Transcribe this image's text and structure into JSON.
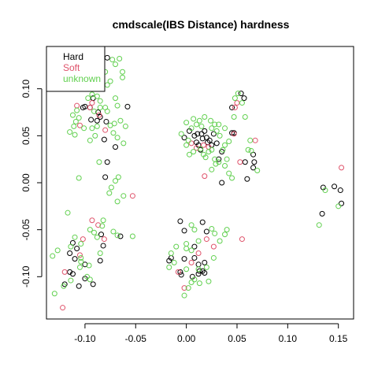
{
  "chart_data": {
    "type": "scatter",
    "title": "cmdscale(IBS Distance) hardness",
    "xlabel": "",
    "ylabel": "",
    "xlim": [
      -0.138,
      0.165
    ],
    "ylim": [
      -0.145,
      0.145
    ],
    "x_ticks": [
      -0.1,
      -0.05,
      0.0,
      0.05,
      0.1,
      0.15
    ],
    "x_tick_labels": [
      "-0.10",
      "-0.05",
      "0.00",
      "0.05",
      "0.10",
      "0.15"
    ],
    "y_ticks": [
      -0.1,
      -0.05,
      0.0,
      0.05,
      0.1
    ],
    "y_tick_labels": [
      "-0.10",
      "-0.05",
      "0.00",
      "0.05",
      "0.10"
    ],
    "grid": false,
    "legend_position": "top-left",
    "marker": "open-circle",
    "series": [
      {
        "name": "Hard",
        "color": "#000000",
        "points": [
          [
            -0.078,
            0.133
          ],
          [
            -0.092,
            0.09
          ],
          [
            -0.102,
            0.08
          ],
          [
            -0.1,
            0.081
          ],
          [
            -0.095,
            0.08
          ],
          [
            -0.087,
            0.075
          ],
          [
            -0.085,
            0.07
          ],
          [
            -0.094,
            0.067
          ],
          [
            -0.088,
            0.066
          ],
          [
            -0.079,
            0.065
          ],
          [
            -0.058,
            0.081
          ],
          [
            -0.07,
            0.038
          ],
          [
            -0.081,
            0.046
          ],
          [
            -0.078,
            0.022
          ],
          [
            -0.08,
            0.006
          ],
          [
            -0.112,
            -0.064
          ],
          [
            -0.108,
            -0.07
          ],
          [
            -0.115,
            -0.075
          ],
          [
            -0.11,
            -0.081
          ],
          [
            -0.1,
            -0.087
          ],
          [
            -0.115,
            -0.095
          ],
          [
            -0.112,
            -0.097
          ],
          [
            -0.1,
            -0.102
          ],
          [
            -0.092,
            -0.108
          ],
          [
            -0.12,
            -0.108
          ],
          [
            -0.106,
            -0.11
          ],
          [
            -0.085,
            -0.083
          ],
          [
            -0.082,
            -0.067
          ],
          [
            -0.084,
            -0.055
          ],
          [
            -0.065,
            -0.057
          ],
          [
            -0.002,
            0.048
          ],
          [
            0.003,
            0.055
          ],
          [
            0.008,
            0.05
          ],
          [
            0.01,
            0.043
          ],
          [
            0.012,
            0.04
          ],
          [
            0.015,
            0.052
          ],
          [
            0.018,
            0.055
          ],
          [
            0.02,
            0.048
          ],
          [
            0.023,
            0.045
          ],
          [
            0.021,
            0.043
          ],
          [
            0.025,
            0.04
          ],
          [
            0.016,
            0.047
          ],
          [
            0.011,
            0.052
          ],
          [
            0.027,
            0.052
          ],
          [
            0.03,
            0.042
          ],
          [
            0.035,
            0.033
          ],
          [
            0.032,
            0.025
          ],
          [
            0.045,
            0.053
          ],
          [
            0.047,
            0.053
          ],
          [
            0.054,
            0.095
          ],
          [
            0.057,
            0.09
          ],
          [
            0.045,
            0.08
          ],
          [
            0.058,
            0.022
          ],
          [
            0.066,
            0.03
          ],
          [
            0.067,
            0.022
          ],
          [
            0.066,
            0.016
          ],
          [
            0.06,
            0.004
          ],
          [
            0.035,
            0.0
          ],
          [
            0.014,
            0.035
          ],
          [
            -0.006,
            -0.041
          ],
          [
            -0.002,
            -0.051
          ],
          [
            0.016,
            -0.042
          ],
          [
            0.02,
            -0.052
          ],
          [
            -0.015,
            -0.08
          ],
          [
            -0.002,
            -0.081
          ],
          [
            0.008,
            -0.08
          ],
          [
            0.012,
            -0.087
          ],
          [
            0.018,
            -0.085
          ],
          [
            0.013,
            -0.094
          ],
          [
            0.016,
            -0.094
          ],
          [
            0.018,
            -0.096
          ],
          [
            0.012,
            -0.097
          ],
          [
            -0.006,
            -0.095
          ],
          [
            -0.005,
            -0.098
          ],
          [
            0.006,
            -0.1
          ],
          [
            -0.017,
            -0.083
          ],
          [
            0.008,
            -0.068
          ],
          [
            0.135,
            -0.005
          ],
          [
            0.146,
            -0.004
          ],
          [
            0.152,
            -0.008
          ],
          [
            0.153,
            -0.022
          ],
          [
            0.134,
            -0.033
          ]
        ]
      },
      {
        "name": "Soft",
        "color": "#DF536B",
        "points": [
          [
            -0.095,
            0.08
          ],
          [
            -0.105,
            0.061
          ],
          [
            -0.108,
            0.082
          ],
          [
            -0.08,
            0.056
          ],
          [
            -0.086,
            0.072
          ],
          [
            -0.093,
            0.085
          ],
          [
            -0.053,
            -0.014
          ],
          [
            -0.093,
            -0.04
          ],
          [
            -0.087,
            -0.045
          ],
          [
            -0.102,
            -0.06
          ],
          [
            -0.12,
            -0.095
          ],
          [
            -0.122,
            -0.133
          ],
          [
            -0.105,
            -0.077
          ],
          [
            -0.081,
            -0.06
          ],
          [
            0.017,
            0.04
          ],
          [
            0.022,
            0.038
          ],
          [
            0.01,
            0.037
          ],
          [
            0.05,
            0.085
          ],
          [
            0.048,
            0.08
          ],
          [
            0.068,
            0.045
          ],
          [
            0.047,
            0.052
          ],
          [
            0.053,
            0.022
          ],
          [
            0.018,
            0.007
          ],
          [
            0.005,
            0.042
          ],
          [
            0.02,
            -0.06
          ],
          [
            0.012,
            -0.075
          ],
          [
            0.005,
            -0.085
          ],
          [
            -0.002,
            -0.112
          ],
          [
            -0.008,
            -0.095
          ],
          [
            0.027,
            -0.068
          ],
          [
            0.055,
            -0.06
          ],
          [
            0.153,
            0.016
          ]
        ]
      },
      {
        "name": "unknown",
        "color": "#61D04F",
        "points": [
          [
            -0.073,
            0.131
          ],
          [
            -0.066,
            0.132
          ],
          [
            -0.07,
            0.126
          ],
          [
            -0.08,
            0.118
          ],
          [
            -0.063,
            0.118
          ],
          [
            -0.085,
            0.111
          ],
          [
            -0.063,
            0.112
          ],
          [
            -0.075,
            0.108
          ],
          [
            -0.09,
            0.1
          ],
          [
            -0.078,
            0.104
          ],
          [
            -0.093,
            0.094
          ],
          [
            -0.088,
            0.092
          ],
          [
            -0.097,
            0.09
          ],
          [
            -0.085,
            0.087
          ],
          [
            -0.07,
            0.09
          ],
          [
            -0.08,
            0.08
          ],
          [
            -0.108,
            0.077
          ],
          [
            -0.112,
            0.072
          ],
          [
            -0.091,
            0.076
          ],
          [
            -0.085,
            0.08
          ],
          [
            -0.078,
            0.076
          ],
          [
            -0.068,
            0.082
          ],
          [
            -0.088,
            0.06
          ],
          [
            -0.093,
            0.058
          ],
          [
            -0.09,
            0.05
          ],
          [
            -0.101,
            0.058
          ],
          [
            -0.095,
            0.045
          ],
          [
            -0.111,
            0.06
          ],
          [
            -0.109,
            0.065
          ],
          [
            -0.106,
            0.069
          ],
          [
            -0.115,
            0.054
          ],
          [
            -0.11,
            0.051
          ],
          [
            -0.072,
            0.053
          ],
          [
            -0.068,
            0.048
          ],
          [
            -0.062,
            0.042
          ],
          [
            -0.071,
            0.063
          ],
          [
            -0.075,
            0.061
          ],
          [
            -0.065,
            0.066
          ],
          [
            -0.06,
            0.06
          ],
          [
            -0.086,
            0.022
          ],
          [
            -0.067,
            0.006
          ],
          [
            -0.07,
            0.002
          ],
          [
            -0.074,
            -0.005
          ],
          [
            -0.076,
            -0.011
          ],
          [
            -0.068,
            -0.02
          ],
          [
            -0.062,
            -0.014
          ],
          [
            -0.106,
            0.005
          ],
          [
            -0.117,
            -0.032
          ],
          [
            -0.082,
            -0.04
          ],
          [
            -0.083,
            -0.046
          ],
          [
            -0.072,
            -0.052
          ],
          [
            -0.068,
            -0.056
          ],
          [
            -0.053,
            -0.057
          ],
          [
            -0.095,
            -0.05
          ],
          [
            -0.091,
            -0.053
          ],
          [
            -0.11,
            -0.058
          ],
          [
            -0.104,
            -0.065
          ],
          [
            -0.088,
            -0.058
          ],
          [
            -0.114,
            -0.068
          ],
          [
            -0.127,
            -0.072
          ],
          [
            -0.132,
            -0.078
          ],
          [
            -0.104,
            -0.08
          ],
          [
            -0.096,
            -0.088
          ],
          [
            -0.105,
            -0.09
          ],
          [
            -0.098,
            -0.1
          ],
          [
            -0.095,
            -0.103
          ],
          [
            -0.114,
            -0.104
          ],
          [
            -0.121,
            -0.11
          ],
          [
            -0.13,
            -0.118
          ],
          [
            -0.104,
            -0.084
          ],
          [
            -0.085,
            -0.075
          ],
          [
            0.0,
            0.064
          ],
          [
            0.007,
            0.068
          ],
          [
            0.01,
            0.062
          ],
          [
            0.015,
            0.06
          ],
          [
            0.005,
            0.058
          ],
          [
            0.013,
            0.066
          ],
          [
            0.018,
            0.07
          ],
          [
            0.024,
            0.066
          ],
          [
            0.028,
            0.062
          ],
          [
            0.03,
            0.055
          ],
          [
            0.033,
            0.05
          ],
          [
            0.038,
            0.058
          ],
          [
            0.042,
            0.044
          ],
          [
            0.038,
            0.04
          ],
          [
            0.036,
            0.035
          ],
          [
            0.04,
            0.025
          ],
          [
            0.029,
            0.02
          ],
          [
            0.028,
            0.025
          ],
          [
            0.038,
            0.018
          ],
          [
            0.042,
            0.01
          ],
          [
            0.025,
            0.014
          ],
          [
            0.032,
            0.022
          ],
          [
            0.0,
            0.04
          ],
          [
            0.003,
            0.03
          ],
          [
            0.007,
            0.033
          ],
          [
            0.014,
            0.036
          ],
          [
            0.017,
            0.03
          ],
          [
            0.019,
            0.027
          ],
          [
            0.022,
            0.033
          ],
          [
            0.025,
            0.035
          ],
          [
            0.048,
            0.09
          ],
          [
            0.047,
            0.07
          ],
          [
            0.058,
            0.07
          ],
          [
            0.063,
            0.045
          ],
          [
            0.061,
            0.035
          ],
          [
            0.064,
            0.034
          ],
          [
            0.07,
            0.013
          ],
          [
            0.045,
            0.005
          ],
          [
            0.051,
            0.095
          ],
          [
            0.055,
            0.085
          ],
          [
            -0.005,
            0.052
          ],
          [
            0.002,
            0.045
          ],
          [
            0.025,
            0.058
          ],
          [
            0.032,
            0.062
          ],
          [
            0.005,
            -0.045
          ],
          [
            0.008,
            -0.05
          ],
          [
            0.025,
            -0.049
          ],
          [
            0.028,
            -0.054
          ],
          [
            0.033,
            -0.062
          ],
          [
            0.04,
            -0.05
          ],
          [
            0.038,
            -0.055
          ],
          [
            0.012,
            -0.062
          ],
          [
            0.0,
            -0.07
          ],
          [
            0.005,
            -0.072
          ],
          [
            -0.015,
            -0.075
          ],
          [
            -0.012,
            -0.085
          ],
          [
            -0.017,
            -0.09
          ],
          [
            0.0,
            -0.092
          ],
          [
            0.012,
            -0.092
          ],
          [
            0.02,
            -0.09
          ],
          [
            0.005,
            -0.106
          ],
          [
            0.013,
            -0.107
          ],
          [
            0.002,
            -0.112
          ],
          [
            -0.002,
            -0.12
          ],
          [
            0.022,
            -0.105
          ],
          [
            0.008,
            -0.103
          ],
          [
            0.0,
            -0.065
          ],
          [
            -0.01,
            -0.068
          ],
          [
            0.027,
            -0.08
          ],
          [
            0.137,
            -0.008
          ],
          [
            0.131,
            -0.045
          ],
          [
            0.15,
            -0.025
          ]
        ]
      }
    ]
  }
}
